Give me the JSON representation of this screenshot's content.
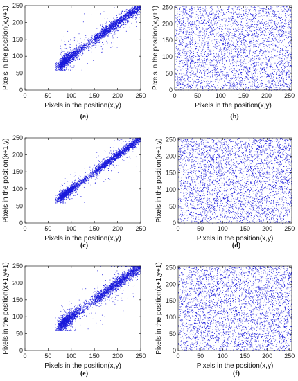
{
  "figure": {
    "point_color": "#1a1adb",
    "axis_color": "#222222"
  },
  "chart_data": [
    {
      "type": "scatter",
      "caption": "(a)",
      "xlabel": "Pixels in the position(x,y)",
      "ylabel": "Pixels in the position(x,y+1)",
      "xlim": [
        0,
        250
      ],
      "ylim": [
        0,
        250
      ],
      "xticks": [
        0,
        50,
        100,
        150,
        200,
        250
      ],
      "yticks": [
        0,
        50,
        100,
        150,
        200,
        250
      ],
      "grid": false,
      "distribution": "correlated",
      "correlation_coefficient_approx": 0.95,
      "x_range_observed": [
        65,
        250
      ],
      "n_points_approx": 4000
    },
    {
      "type": "scatter",
      "caption": "(b)",
      "xlabel": "Pixels in the position(x,y)",
      "ylabel": "Pixels in the position(x,y+1)",
      "xlim": [
        0,
        255
      ],
      "ylim": [
        0,
        255
      ],
      "xticks": [
        0,
        50,
        100,
        150,
        200,
        250
      ],
      "yticks": [
        0,
        50,
        100,
        150,
        200,
        250
      ],
      "grid": false,
      "distribution": "uniform",
      "correlation_coefficient_approx": 0.0,
      "n_points_approx": 4000
    },
    {
      "type": "scatter",
      "caption": "(c)",
      "xlabel": "Pixels in the position(x,y)",
      "ylabel": "Pixels in the position(x+1,y)",
      "xlim": [
        0,
        250
      ],
      "ylim": [
        0,
        250
      ],
      "xticks": [
        0,
        50,
        100,
        150,
        200,
        250
      ],
      "yticks": [
        0,
        50,
        100,
        150,
        200,
        250
      ],
      "grid": false,
      "distribution": "correlated",
      "correlation_coefficient_approx": 0.97,
      "x_range_observed": [
        65,
        250
      ],
      "n_points_approx": 4000
    },
    {
      "type": "scatter",
      "caption": "(d)",
      "xlabel": "Pixels in the position(x,y)",
      "ylabel": "Pixels in the position(x+1,y)",
      "xlim": [
        0,
        255
      ],
      "ylim": [
        0,
        255
      ],
      "xticks": [
        0,
        50,
        100,
        150,
        200,
        250
      ],
      "yticks": [
        0,
        50,
        100,
        150,
        200,
        250
      ],
      "grid": false,
      "distribution": "uniform",
      "correlation_coefficient_approx": 0.0,
      "n_points_approx": 4000
    },
    {
      "type": "scatter",
      "caption": "(e)",
      "xlabel": "Pixels in the position(x,y)",
      "ylabel": "Pixels in the position(x+1,y+1)",
      "xlim": [
        0,
        250
      ],
      "ylim": [
        0,
        250
      ],
      "xticks": [
        0,
        50,
        100,
        150,
        200,
        250
      ],
      "yticks": [
        0,
        50,
        100,
        150,
        200,
        250
      ],
      "grid": false,
      "distribution": "correlated",
      "correlation_coefficient_approx": 0.93,
      "x_range_observed": [
        65,
        250
      ],
      "n_points_approx": 4000
    },
    {
      "type": "scatter",
      "caption": "(f)",
      "xlabel": "Pixels in the position(x,y)",
      "ylabel": "Pixels in the position(x+1,y+1)",
      "xlim": [
        0,
        255
      ],
      "ylim": [
        0,
        255
      ],
      "xticks": [
        0,
        50,
        100,
        150,
        200,
        250
      ],
      "yticks": [
        0,
        50,
        100,
        150,
        200,
        250
      ],
      "grid": false,
      "distribution": "uniform",
      "correlation_coefficient_approx": 0.0,
      "n_points_approx": 4000
    }
  ]
}
